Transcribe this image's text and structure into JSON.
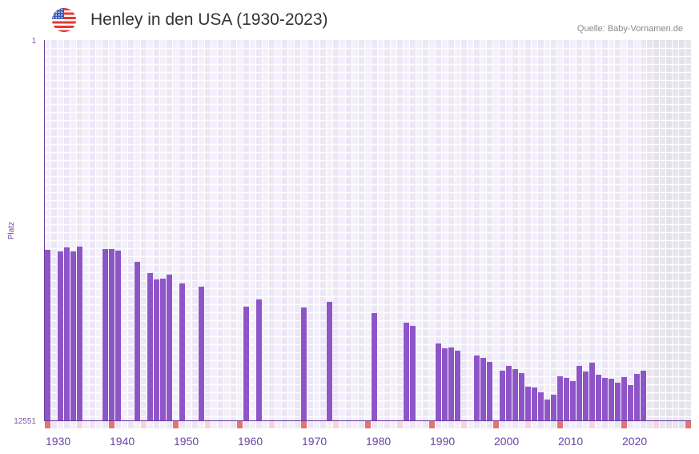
{
  "header": {
    "title": "Henley in den USA (1930-2023)",
    "source": "Quelle: Baby-Vornamen.de",
    "flag_icon": "us-flag-icon"
  },
  "colors": {
    "bar": "#8e55c8",
    "axis": "#6a3d9a",
    "decade_marker": "#e57373",
    "half_decade_marker": "#f5d5de"
  },
  "chart_data": {
    "type": "bar",
    "title": "Henley in den USA (1930-2023)",
    "xlabel": "",
    "ylabel": "Platz",
    "ylim": [
      12551,
      1
    ],
    "y_ticks": [
      "1",
      "12551"
    ],
    "xlim": [
      1930,
      2030
    ],
    "x_ticks": [
      "1930",
      "1940",
      "1950",
      "1960",
      "1970",
      "1980",
      "1990",
      "2000",
      "2010",
      "2020"
    ],
    "grid": true,
    "future_shaded_from": 2024,
    "years": [
      1930,
      1932,
      1933,
      1934,
      1935,
      1939,
      1940,
      1941,
      1944,
      1946,
      1947,
      1948,
      1949,
      1951,
      1954,
      1961,
      1963,
      1970,
      1974,
      1981,
      1986,
      1987,
      1991,
      1992,
      1993,
      1994,
      1997,
      1998,
      1999,
      2001,
      2002,
      2003,
      2004,
      2005,
      2006,
      2007,
      2008,
      2009,
      2010,
      2011,
      2012,
      2013,
      2014,
      2015,
      2016,
      2017,
      2018,
      2019,
      2020,
      2021,
      2022,
      2023
    ],
    "ranks": [
      6923,
      6975,
      6843,
      6975,
      6816,
      6896,
      6896,
      6948,
      7319,
      7688,
      7900,
      7873,
      7741,
      8032,
      8138,
      8798,
      8561,
      8825,
      8640,
      9010,
      9327,
      9433,
      10013,
      10172,
      10146,
      10251,
      10410,
      10489,
      10621,
      10912,
      10753,
      10859,
      10991,
      11440,
      11466,
      11625,
      11863,
      11704,
      11096,
      11149,
      11255,
      10753,
      10938,
      10648,
      11044,
      11149,
      11176,
      11308,
      11123,
      11387,
      11017,
      10912
    ]
  }
}
